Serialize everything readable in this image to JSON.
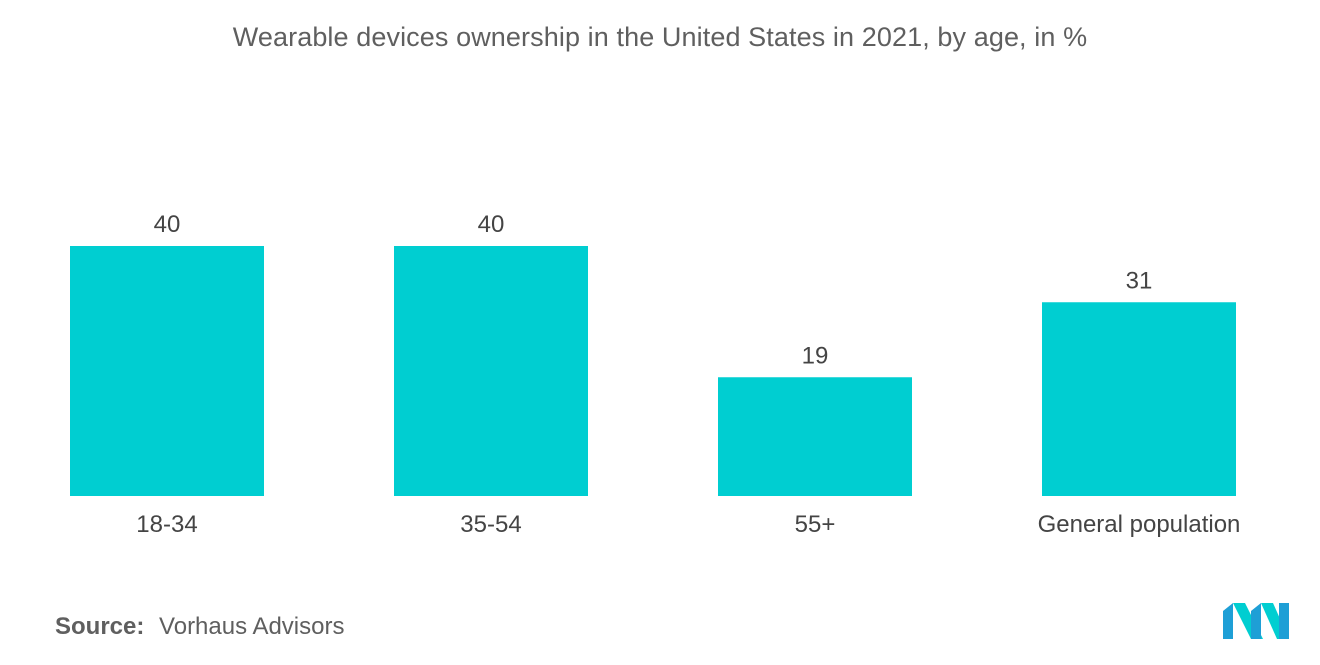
{
  "chart_data": {
    "type": "bar",
    "title": "Wearable devices ownership in the United States in 2021, by age, in %",
    "categories": [
      "18-34",
      "35-54",
      "55+",
      "General population"
    ],
    "values": [
      40,
      40,
      19,
      31
    ],
    "ylim": [
      0,
      40
    ],
    "xlabel": "",
    "ylabel": "",
    "grid": false,
    "legend": "none",
    "bar_color": "#00CED1"
  },
  "source": {
    "label": "Source:",
    "value": "Vorhaus Advisors"
  },
  "logo": {
    "icon": "mordor-intelligence-logo-icon",
    "color_primary": "#1E9FD6",
    "color_secondary": "#00CED1"
  }
}
